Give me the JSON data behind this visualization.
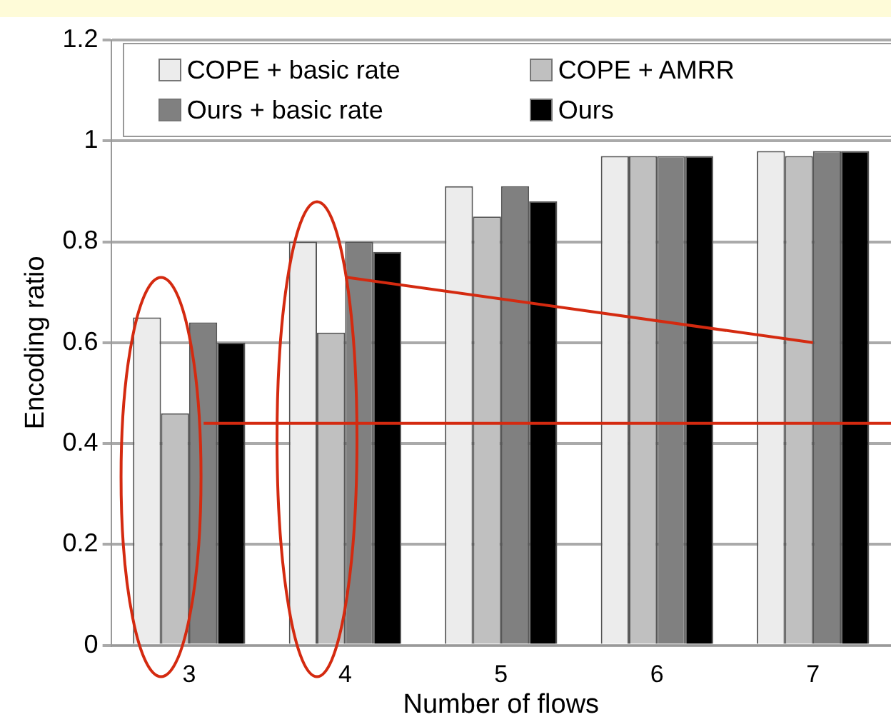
{
  "chart_data": {
    "type": "bar",
    "xlabel": "Number of flows",
    "ylabel": "Encoding ratio",
    "categories": [
      "3",
      "4",
      "5",
      "6",
      "7"
    ],
    "series": [
      {
        "name": "COPE + basic rate",
        "color": "#ececec",
        "values": [
          0.65,
          0.8,
          0.91,
          0.97,
          0.98
        ]
      },
      {
        "name": "COPE + AMRR",
        "color": "#c0c0c0",
        "values": [
          0.46,
          0.62,
          0.85,
          0.97,
          0.97
        ]
      },
      {
        "name": "Ours + basic rate",
        "color": "#808080",
        "values": [
          0.64,
          0.8,
          0.91,
          0.97,
          0.98
        ]
      },
      {
        "name": "Ours",
        "color": "#000000",
        "values": [
          0.6,
          0.78,
          0.88,
          0.97,
          0.98
        ]
      },
      {
        "type": "line",
        "color": "#d42a10",
        "x": [
          "4",
          "7"
        ],
        "values": [
          0.73,
          0.6
        ],
        "marker": "none"
      }
    ],
    "ref_lines": [
      {
        "axis": "y",
        "value": 0.44,
        "color": "#d42a10"
      }
    ],
    "ylim": [
      0,
      1.2
    ],
    "yticks": [
      0,
      0.2,
      0.4,
      0.6,
      0.8,
      1,
      1.2
    ],
    "grid": "y",
    "legend": "top"
  }
}
